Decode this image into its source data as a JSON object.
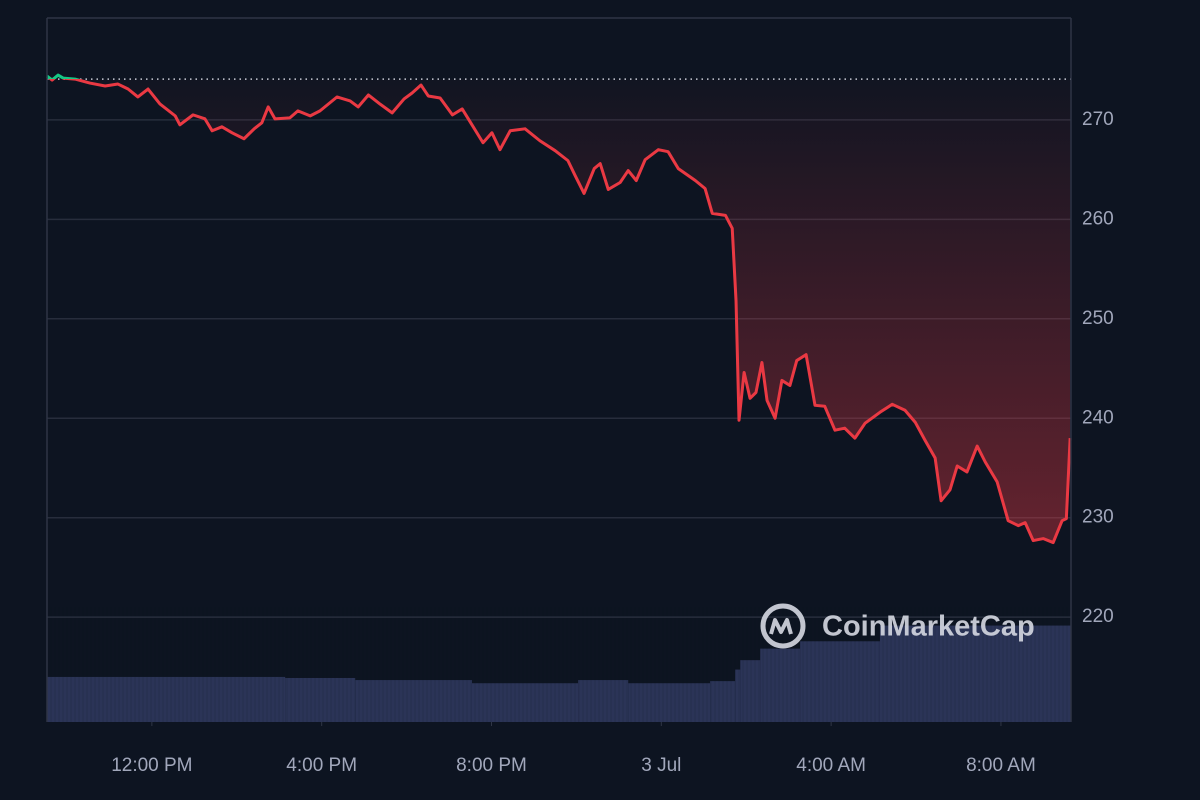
{
  "chart_data": {
    "type": "line",
    "watermark": "CoinMarketCap",
    "x": [
      9.53,
      9.65,
      9.79,
      9.91,
      10.19,
      10.54,
      10.9,
      11.2,
      11.44,
      11.67,
      11.91,
      12.19,
      12.55,
      12.66,
      12.97,
      13.25,
      13.42,
      13.65,
      13.89,
      14.17,
      14.41,
      14.59,
      14.74,
      14.9,
      15.25,
      15.44,
      15.73,
      15.96,
      16.36,
      16.67,
      16.86,
      17.1,
      17.37,
      17.66,
      17.94,
      18.13,
      18.34,
      18.51,
      18.79,
      19.08,
      19.31,
      19.54,
      19.8,
      20.01,
      20.2,
      20.44,
      20.79,
      21.14,
      21.5,
      21.8,
      21.97,
      22.18,
      22.42,
      22.56,
      22.75,
      23.03,
      23.22,
      23.41,
      23.62,
      23.93,
      24.16,
      24.4,
      24.8,
      25.03,
      25.2,
      25.51,
      25.67,
      25.76,
      25.83,
      25.95,
      26.09,
      26.23,
      26.37,
      26.49,
      26.68,
      26.84,
      27.03,
      27.19,
      27.41,
      27.62,
      27.85,
      28.09,
      28.32,
      28.56,
      28.8,
      29.15,
      29.44,
      29.74,
      29.98,
      30.21,
      30.45,
      30.59,
      30.8,
      30.97,
      31.2,
      31.44,
      31.63,
      31.91,
      32.17,
      32.41,
      32.57,
      32.76,
      33.0,
      33.23,
      33.44,
      33.54,
      33.63
    ],
    "values": [
      274.4,
      274.0,
      274.5,
      274.2,
      274.1,
      273.7,
      273.4,
      273.6,
      273.1,
      272.3,
      273.1,
      271.6,
      270.4,
      269.5,
      270.5,
      270.1,
      268.9,
      269.3,
      268.7,
      268.1,
      269.1,
      269.7,
      271.3,
      270.1,
      270.2,
      270.9,
      270.4,
      270.9,
      272.3,
      271.9,
      271.3,
      272.5,
      271.6,
      270.7,
      272.1,
      272.7,
      273.5,
      272.4,
      272.2,
      270.5,
      271.1,
      269.5,
      267.7,
      268.7,
      267.0,
      268.9,
      269.1,
      267.9,
      266.9,
      265.9,
      264.4,
      262.6,
      265.1,
      265.6,
      263.0,
      263.7,
      264.9,
      263.9,
      266.0,
      267.0,
      266.8,
      265.1,
      263.9,
      263.1,
      260.6,
      260.4,
      259.1,
      251.8,
      239.8,
      244.6,
      242.0,
      242.6,
      245.6,
      241.8,
      240.0,
      243.8,
      243.3,
      245.8,
      246.4,
      241.3,
      241.2,
      238.8,
      239.0,
      238.0,
      239.5,
      240.6,
      241.4,
      240.8,
      239.6,
      237.8,
      236.0,
      231.7,
      232.8,
      235.2,
      234.6,
      237.2,
      235.6,
      233.6,
      229.7,
      229.2,
      229.5,
      227.7,
      227.9,
      227.5,
      229.7,
      229.9,
      238.0
    ],
    "reference_value": 274.1,
    "up_color": "#16c784",
    "down_color": "#ea3943",
    "volume": {
      "color": "#2b3457",
      "ylim": [
        0,
        100
      ],
      "x": [
        9.53,
        15.14,
        16.79,
        19.54,
        22.04,
        23.22,
        25.15,
        25.74,
        25.86,
        26.33,
        27.27,
        29.15
      ],
      "values": [
        43,
        42,
        40,
        37,
        40,
        37,
        39,
        50,
        59,
        70,
        77,
        92
      ]
    },
    "xlim": [
      9.53,
      33.65
    ],
    "xticks": [
      {
        "value": 12,
        "label": "12:00 PM"
      },
      {
        "value": 16,
        "label": "4:00 PM"
      },
      {
        "value": 20,
        "label": "8:00 PM"
      },
      {
        "value": 24,
        "label": "3 Jul"
      },
      {
        "value": 28,
        "label": "4:00 AM"
      },
      {
        "value": 32,
        "label": "8:00 AM"
      }
    ],
    "ylim": [
      209.46,
      280.24
    ],
    "yticks": [
      220,
      230,
      240,
      250,
      260,
      270
    ],
    "grid": true
  }
}
